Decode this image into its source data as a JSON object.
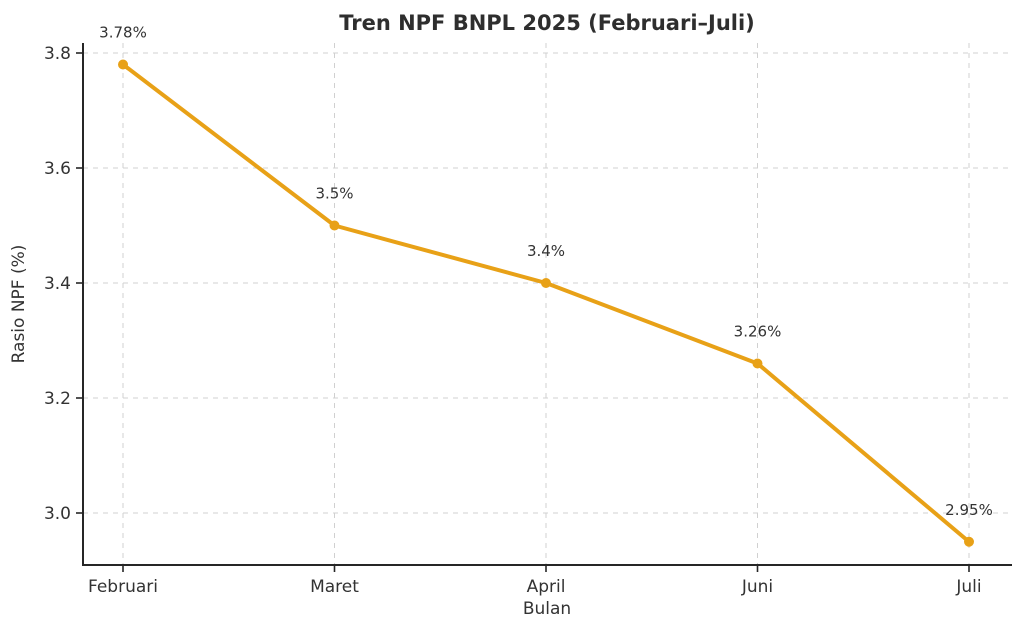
{
  "chart_data": {
    "type": "line",
    "title": "Tren NPF BNPL 2025 (Februari–Juli)",
    "xlabel": "Bulan",
    "ylabel": "Rasio NPF (%)",
    "categories": [
      "Februari",
      "Maret",
      "April",
      "Juni",
      "Juli"
    ],
    "series": [
      {
        "name": "Rasio NPF",
        "values": [
          3.78,
          3.5,
          3.4,
          3.26,
          2.95
        ],
        "point_labels": [
          "3.78%",
          "3.5%",
          "3.4%",
          "3.26%",
          "2.95%"
        ]
      }
    ],
    "yticks": [
      3.0,
      3.2,
      3.4,
      3.6,
      3.8
    ],
    "ytick_labels": [
      "3.0",
      "3.2",
      "3.4",
      "3.6",
      "3.8"
    ],
    "ylim": [
      2.91,
      3.82
    ],
    "grid": "dashed-both-axes",
    "legend": "none",
    "colors": {
      "line": "#E8A117",
      "marker": "#E8A117",
      "grid": "#d0d0d0",
      "spine": "#262626",
      "text": "#333333",
      "background": "#ffffff"
    }
  }
}
